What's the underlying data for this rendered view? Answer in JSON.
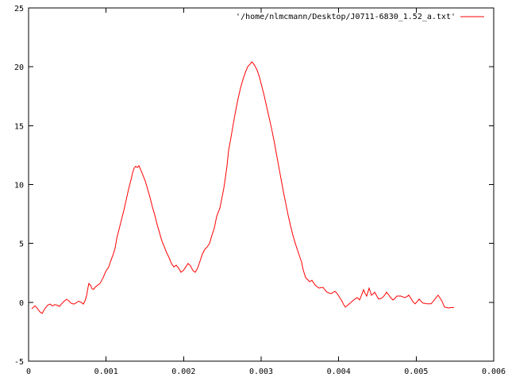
{
  "window": {
    "background": "#ffffff"
  },
  "chart_data": {
    "type": "line",
    "title": "",
    "xlabel": "",
    "ylabel": "",
    "legend": {
      "position": "top-right-inside",
      "entries": [
        {
          "label": "'/home/nlmcmann/Desktop/J0711-6830_1.52_a.txt'",
          "color": "#ff0000"
        }
      ]
    },
    "axes": {
      "xlim": [
        0,
        0.006
      ],
      "ylim": [
        -5,
        25
      ],
      "x_tick_values": [
        0,
        0.001,
        0.002,
        0.003,
        0.004,
        0.005,
        0.006
      ],
      "x_tick_labels": [
        "0",
        "0.001",
        "0.002",
        "0.003",
        "0.004",
        "0.005",
        "0.006"
      ],
      "y_tick_values": [
        -5,
        0,
        5,
        10,
        15,
        20,
        25
      ],
      "y_tick_labels": [
        "-5",
        "0",
        "5",
        "10",
        "15",
        "20",
        "25"
      ],
      "grid": false,
      "tick_style": "inward-mirrored"
    },
    "colors": {
      "line": "#ff0000",
      "axis": "#000000",
      "text": "#000000",
      "background": "#ffffff"
    },
    "series": [
      {
        "name": "'/home/nlmcmann/Desktop/J0711-6830_1.52_a.txt'",
        "color": "#ff0000",
        "points": [
          [
            4.1e-05,
            -0.55
          ],
          [
            8.19e-05,
            -0.3
          ],
          [
            0.0001126,
            -0.5
          ],
          [
            0.0001433,
            -0.8
          ],
          [
            0.0001741,
            -0.95
          ],
          [
            0.000215,
            -0.5
          ],
          [
            0.0002457,
            -0.25
          ],
          [
            0.0002765,
            -0.15
          ],
          [
            0.0003072,
            -0.3
          ],
          [
            0.0003379,
            -0.2
          ],
          [
            0.0003686,
            -0.25
          ],
          [
            0.0003993,
            -0.35
          ],
          [
            0.00043,
            -0.1
          ],
          [
            0.0004608,
            0.1
          ],
          [
            0.0004915,
            0.25
          ],
          [
            0.0005222,
            0.1
          ],
          [
            0.0005529,
            -0.1
          ],
          [
            0.0005836,
            -0.15
          ],
          [
            0.0006143,
            -0.05
          ],
          [
            0.0006451,
            0.1
          ],
          [
            0.0006758,
            0.0
          ],
          [
            0.0007065,
            -0.15
          ],
          [
            0.000727,
            0.1
          ],
          [
            0.0007474,
            0.55
          ],
          [
            0.0007679,
            1.3
          ],
          [
            0.0007782,
            1.6
          ],
          [
            0.0007987,
            1.45
          ],
          [
            0.0008191,
            1.15
          ],
          [
            0.0008396,
            1.1
          ],
          [
            0.0008601,
            1.3
          ],
          [
            0.0008908,
            1.45
          ],
          [
            0.0009215,
            1.6
          ],
          [
            0.0009625,
            2.1
          ],
          [
            0.0009932,
            2.6
          ],
          [
            0.0010341,
            3.0
          ],
          [
            0.0010648,
            3.6
          ],
          [
            0.0010956,
            4.15
          ],
          [
            0.001116,
            4.6
          ],
          [
            0.0011365,
            5.4
          ],
          [
            0.0011672,
            6.2
          ],
          [
            0.001198,
            7.0
          ],
          [
            0.0012287,
            7.8
          ],
          [
            0.0012594,
            8.7
          ],
          [
            0.0012901,
            9.6
          ],
          [
            0.0013208,
            10.4
          ],
          [
            0.0013413,
            11.0
          ],
          [
            0.0013618,
            11.4
          ],
          [
            0.0013823,
            11.55
          ],
          [
            0.0014027,
            11.45
          ],
          [
            0.0014232,
            11.6
          ],
          [
            0.0014437,
            11.3
          ],
          [
            0.0014744,
            10.8
          ],
          [
            0.0015051,
            10.3
          ],
          [
            0.0015358,
            9.6
          ],
          [
            0.0015666,
            8.9
          ],
          [
            0.0015973,
            8.1
          ],
          [
            0.001628,
            7.4
          ],
          [
            0.0016587,
            6.6
          ],
          [
            0.0016894,
            5.9
          ],
          [
            0.0017201,
            5.2
          ],
          [
            0.0017509,
            4.7
          ],
          [
            0.0017816,
            4.2
          ],
          [
            0.0018123,
            3.8
          ],
          [
            0.001843,
            3.3
          ],
          [
            0.0018737,
            3.0
          ],
          [
            0.0019044,
            3.15
          ],
          [
            0.0019352,
            2.9
          ],
          [
            0.0019659,
            2.55
          ],
          [
            0.0019966,
            2.7
          ],
          [
            0.0020273,
            3.0
          ],
          [
            0.002058,
            3.3
          ],
          [
            0.0020887,
            3.1
          ],
          [
            0.0021195,
            2.7
          ],
          [
            0.0021502,
            2.55
          ],
          [
            0.0021809,
            2.9
          ],
          [
            0.0022116,
            3.5
          ],
          [
            0.0022423,
            4.1
          ],
          [
            0.002273,
            4.5
          ],
          [
            0.0023038,
            4.7
          ],
          [
            0.0023345,
            5.0
          ],
          [
            0.0023652,
            5.7
          ],
          [
            0.0023959,
            6.3
          ],
          [
            0.0024266,
            7.3
          ],
          [
            0.0024676,
            8.0
          ],
          [
            0.0024983,
            9.0
          ],
          [
            0.0025188,
            9.7
          ],
          [
            0.0025393,
            10.6
          ],
          [
            0.0025597,
            11.6
          ],
          [
            0.0025802,
            12.9
          ],
          [
            0.0026109,
            14.0
          ],
          [
            0.0026416,
            15.2
          ],
          [
            0.0026724,
            16.3
          ],
          [
            0.0027031,
            17.3
          ],
          [
            0.0027338,
            18.2
          ],
          [
            0.0027645,
            18.9
          ],
          [
            0.0027952,
            19.5
          ],
          [
            0.0028259,
            20.0
          ],
          [
            0.0028464,
            20.15
          ],
          [
            0.0028669,
            20.3
          ],
          [
            0.0028771,
            20.42
          ],
          [
            0.0028976,
            20.3
          ],
          [
            0.0029181,
            20.1
          ],
          [
            0.0029488,
            19.7
          ],
          [
            0.0029795,
            19.1
          ],
          [
            0.0030102,
            18.3
          ],
          [
            0.003041,
            17.5
          ],
          [
            0.0030717,
            16.6
          ],
          [
            0.0031024,
            15.7
          ],
          [
            0.0031331,
            14.8
          ],
          [
            0.0031638,
            13.8
          ],
          [
            0.0031945,
            12.7
          ],
          [
            0.0032253,
            11.6
          ],
          [
            0.003256,
            10.5
          ],
          [
            0.0032867,
            9.4
          ],
          [
            0.0033174,
            8.4
          ],
          [
            0.0033481,
            7.4
          ],
          [
            0.0033788,
            6.5
          ],
          [
            0.0034096,
            5.7
          ],
          [
            0.0034403,
            5.0
          ],
          [
            0.003471,
            4.4
          ],
          [
            0.0035017,
            3.8
          ],
          [
            0.0035222,
            3.4
          ],
          [
            0.0035427,
            2.75
          ],
          [
            0.0035734,
            2.1
          ],
          [
            0.0036041,
            1.9
          ],
          [
            0.0036246,
            1.74
          ],
          [
            0.0036553,
            1.87
          ],
          [
            0.003686,
            1.55
          ],
          [
            0.0037065,
            1.4
          ],
          [
            0.0037474,
            1.2
          ],
          [
            0.0037782,
            1.25
          ],
          [
            0.0037986,
            1.27
          ],
          [
            0.0038294,
            1.0
          ],
          [
            0.0038498,
            0.86
          ],
          [
            0.0038805,
            0.78
          ],
          [
            0.003901,
            0.73
          ],
          [
            0.0039317,
            0.85
          ],
          [
            0.0039522,
            0.93
          ],
          [
            0.0039829,
            0.73
          ],
          [
            0.0040137,
            0.4
          ],
          [
            0.0040341,
            0.2
          ],
          [
            0.0040648,
            -0.2
          ],
          [
            0.0040853,
            -0.4
          ],
          [
            0.004116,
            -0.25
          ],
          [
            0.0041365,
            -0.13
          ],
          [
            0.0041775,
            0.1
          ],
          [
            0.0042082,
            0.27
          ],
          [
            0.0042389,
            0.4
          ],
          [
            0.0042696,
            0.2
          ],
          [
            0.0043003,
            0.7
          ],
          [
            0.0043208,
            1.07
          ],
          [
            0.0043413,
            0.75
          ],
          [
            0.0043618,
            0.53
          ],
          [
            0.0043925,
            1.2
          ],
          [
            0.0044232,
            0.6
          ],
          [
            0.0044437,
            0.7
          ],
          [
            0.0044642,
            0.86
          ],
          [
            0.0044949,
            0.5
          ],
          [
            0.0045154,
            0.27
          ],
          [
            0.0045461,
            0.33
          ],
          [
            0.0045666,
            0.4
          ],
          [
            0.0045973,
            0.65
          ],
          [
            0.0046177,
            0.86
          ],
          [
            0.0046485,
            0.6
          ],
          [
            0.0046689,
            0.4
          ],
          [
            0.0046997,
            0.2
          ],
          [
            0.0047304,
            0.35
          ],
          [
            0.0047509,
            0.53
          ],
          [
            0.0047816,
            0.53
          ],
          [
            0.004802,
            0.53
          ],
          [
            0.0048328,
            0.45
          ],
          [
            0.0048532,
            0.4
          ],
          [
            0.004884,
            0.5
          ],
          [
            0.0049044,
            0.6
          ],
          [
            0.0049352,
            0.3
          ],
          [
            0.0049556,
            0.07
          ],
          [
            0.0049863,
            -0.13
          ],
          [
            0.0050171,
            0.1
          ],
          [
            0.0050375,
            0.27
          ],
          [
            0.0050683,
            0.05
          ],
          [
            0.0050887,
            -0.07
          ],
          [
            0.0051195,
            -0.1
          ],
          [
            0.0051399,
            -0.13
          ],
          [
            0.0051706,
            -0.13
          ],
          [
            0.0051911,
            -0.13
          ],
          [
            0.0052218,
            0.1
          ],
          [
            0.0052423,
            0.27
          ],
          [
            0.0052628,
            0.45
          ],
          [
            0.0052833,
            0.6
          ],
          [
            0.005314,
            0.3
          ],
          [
            0.0053345,
            0.07
          ],
          [
            0.0053652,
            -0.4
          ],
          [
            0.0053959,
            -0.45
          ],
          [
            0.0054164,
            -0.48
          ],
          [
            0.0054471,
            -0.45
          ],
          [
            0.0054676,
            -0.45
          ],
          [
            0.0054881,
            -0.43
          ]
        ]
      }
    ]
  }
}
